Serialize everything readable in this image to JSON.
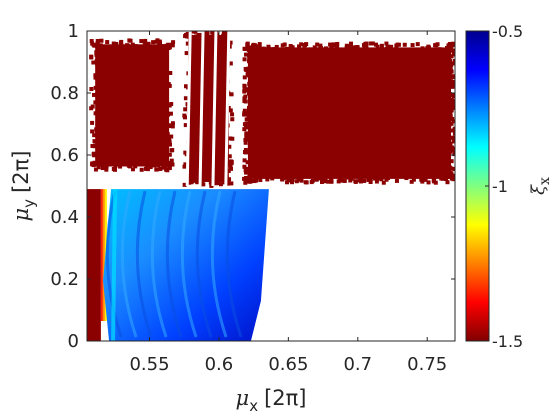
{
  "chart_data": {
    "type": "scatter",
    "title": "",
    "xlabel": {
      "symbol": "μ",
      "sub": "x",
      "unit": "[2π]"
    },
    "ylabel": {
      "symbol": "μ",
      "sub": "y",
      "unit": "[2π]"
    },
    "xlim": [
      0.505,
      0.77
    ],
    "ylim": [
      0,
      1
    ],
    "x_ticks": [
      "0.55",
      "0.6",
      "0.65",
      "0.7",
      "0.75"
    ],
    "x_tick_values": [
      0.55,
      0.6,
      0.65,
      0.7,
      0.75
    ],
    "y_ticks": [
      "0",
      "0.2",
      "0.4",
      "0.6",
      "0.8",
      "1"
    ],
    "y_tick_values": [
      0,
      0.2,
      0.4,
      0.6,
      0.8,
      1
    ],
    "grid": false,
    "colorbar": {
      "label": {
        "symbol": "ξ",
        "sub": "x"
      },
      "range": [
        -1.5,
        -0.5
      ],
      "ticks": [
        "-0.5",
        "-1",
        "-1.5"
      ],
      "tick_values": [
        -0.5,
        -1,
        -1.5
      ],
      "colormap": [
        "#00008f",
        "#0000ff",
        "#0080ff",
        "#00ffff",
        "#80ff80",
        "#ffff00",
        "#ff8000",
        "#ff0000",
        "#800000"
      ]
    },
    "regions": [
      {
        "name": "upper-left-block",
        "xmin": 0.508,
        "xmax": 0.567,
        "ymin": 0.55,
        "ymax": 0.97,
        "value": -1.5
      },
      {
        "name": "upper-middle-strands",
        "xmin": 0.575,
        "xmax": 0.61,
        "ymin": 0.5,
        "ymax": 1.0,
        "value": -1.5
      },
      {
        "name": "upper-right-block",
        "xmin": 0.618,
        "xmax": 0.77,
        "ymin": 0.51,
        "ymax": 0.96,
        "value": -1.5
      },
      {
        "name": "lower-left-strip",
        "xmin": 0.505,
        "xmax": 0.515,
        "ymin": 0.0,
        "ymax": 0.49,
        "value": -1.5
      },
      {
        "name": "lower-blue-region",
        "xmin": 0.518,
        "xmax": 0.636,
        "ymin": 0.0,
        "ymax": 0.49,
        "value": -0.7
      }
    ]
  }
}
